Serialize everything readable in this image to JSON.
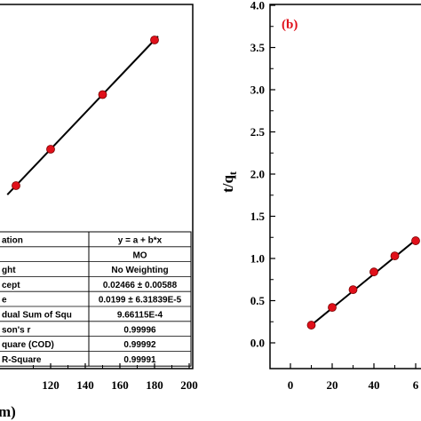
{
  "chart_data": [
    {
      "type": "scatter",
      "panel": "a",
      "x_axis": {
        "ticks": [
          "120",
          "140",
          "160",
          "180",
          "200"
        ],
        "xlim": [
          100,
          200
        ],
        "label_fragment": "m)"
      },
      "ylim": [
        0,
        4.0
      ],
      "points": [
        {
          "x": 100,
          "y": 2.01
        },
        {
          "x": 120,
          "y": 2.41
        },
        {
          "x": 150,
          "y": 3.01
        },
        {
          "x": 180,
          "y": 3.61
        }
      ],
      "fit_line": {
        "x": [
          95,
          182
        ],
        "y": [
          1.91,
          3.65
        ]
      },
      "fit_table": {
        "rows": [
          [
            "ation",
            "y = a + b*x"
          ],
          [
            "",
            "MO"
          ],
          [
            "ght",
            "No Weighting"
          ],
          [
            "cept",
            "0.02466 ± 0.00588"
          ],
          [
            "e",
            "0.0199 ± 6.31839E-5"
          ],
          [
            "dual Sum of Squ",
            "9.66115E-4"
          ],
          [
            "son's r",
            "0.99996"
          ],
          [
            "quare (COD)",
            "0.99992"
          ],
          [
            "R-Square",
            "0.99991"
          ]
        ]
      },
      "colors": {
        "marker": "#e0101a",
        "line": "#000000"
      }
    },
    {
      "type": "scatter",
      "panel": "b",
      "label": "(b)",
      "ylabel": "t/q",
      "ylabel_sub": "t",
      "y_axis": {
        "ticks": [
          "0.0",
          "0.5",
          "1.0",
          "1.5",
          "2.0",
          "2.5",
          "3.0",
          "3.5",
          "4.0"
        ],
        "ylim": [
          -0.15,
          4.0
        ]
      },
      "x_axis": {
        "ticks": [
          "0",
          "20",
          "40",
          "6"
        ],
        "xlim": [
          -10,
          60
        ]
      },
      "points": [
        {
          "x": 10,
          "y": 0.21
        },
        {
          "x": 20,
          "y": 0.42
        },
        {
          "x": 30,
          "y": 0.63
        },
        {
          "x": 40,
          "y": 0.84
        },
        {
          "x": 50,
          "y": 1.03
        },
        {
          "x": 60,
          "y": 1.21
        }
      ],
      "fit_line": {
        "x": [
          9,
          61
        ],
        "y": [
          0.19,
          1.24
        ]
      },
      "colors": {
        "marker": "#e0101a",
        "line": "#000000",
        "label": "#e0101a"
      }
    }
  ]
}
